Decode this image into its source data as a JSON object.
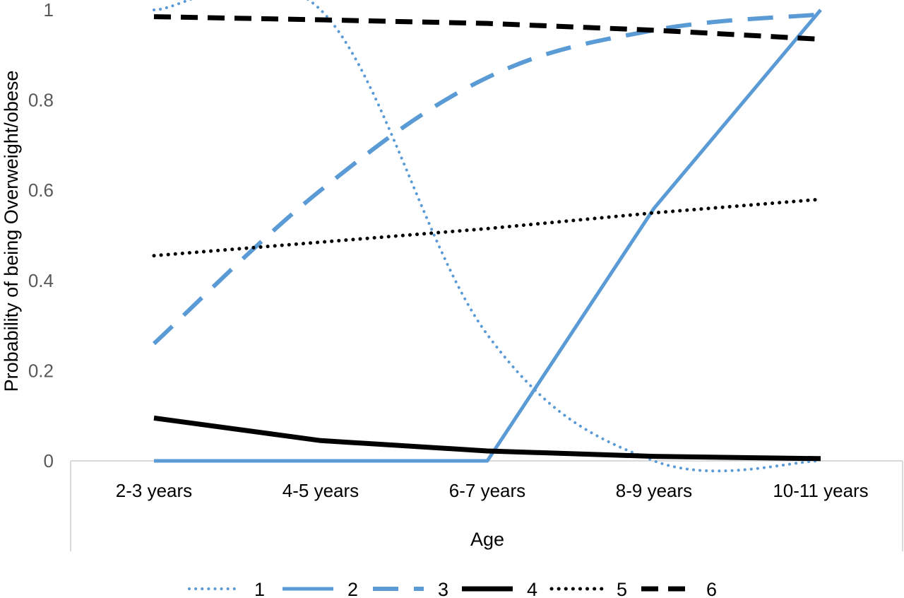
{
  "chart_data": {
    "type": "line",
    "title": "",
    "xlabel": "Age",
    "ylabel": "Probability of being Overweight/obese",
    "categories": [
      "2-3 years",
      "4-5 years",
      "6-7 years",
      "8-9 years",
      "10-11 years"
    ],
    "ylim": [
      0,
      1
    ],
    "yticks": [
      "0",
      "0.2",
      "0.4",
      "0.6",
      "0.8",
      "1"
    ],
    "grid": false,
    "legend_position": "bottom",
    "series": [
      {
        "name": "1",
        "color": "#5b9bd5",
        "style": "dotted",
        "values": [
          1.0,
          1.0,
          0.28,
          0.0,
          0.0
        ]
      },
      {
        "name": "2",
        "color": "#5b9bd5",
        "style": "solid",
        "values": [
          0.0,
          0.0,
          0.0,
          0.56,
          1.0
        ]
      },
      {
        "name": "3",
        "color": "#5b9bd5",
        "style": "dashed",
        "values": [
          0.26,
          0.6,
          0.85,
          0.955,
          0.99
        ]
      },
      {
        "name": "4",
        "color": "#000000",
        "style": "solid",
        "values": [
          0.095,
          0.045,
          0.022,
          0.01,
          0.005
        ]
      },
      {
        "name": "5",
        "color": "#000000",
        "style": "dotted",
        "values": [
          0.455,
          0.485,
          0.515,
          0.55,
          0.58
        ]
      },
      {
        "name": "6",
        "color": "#000000",
        "style": "dashed",
        "values": [
          0.985,
          0.978,
          0.97,
          0.955,
          0.935
        ]
      }
    ]
  }
}
